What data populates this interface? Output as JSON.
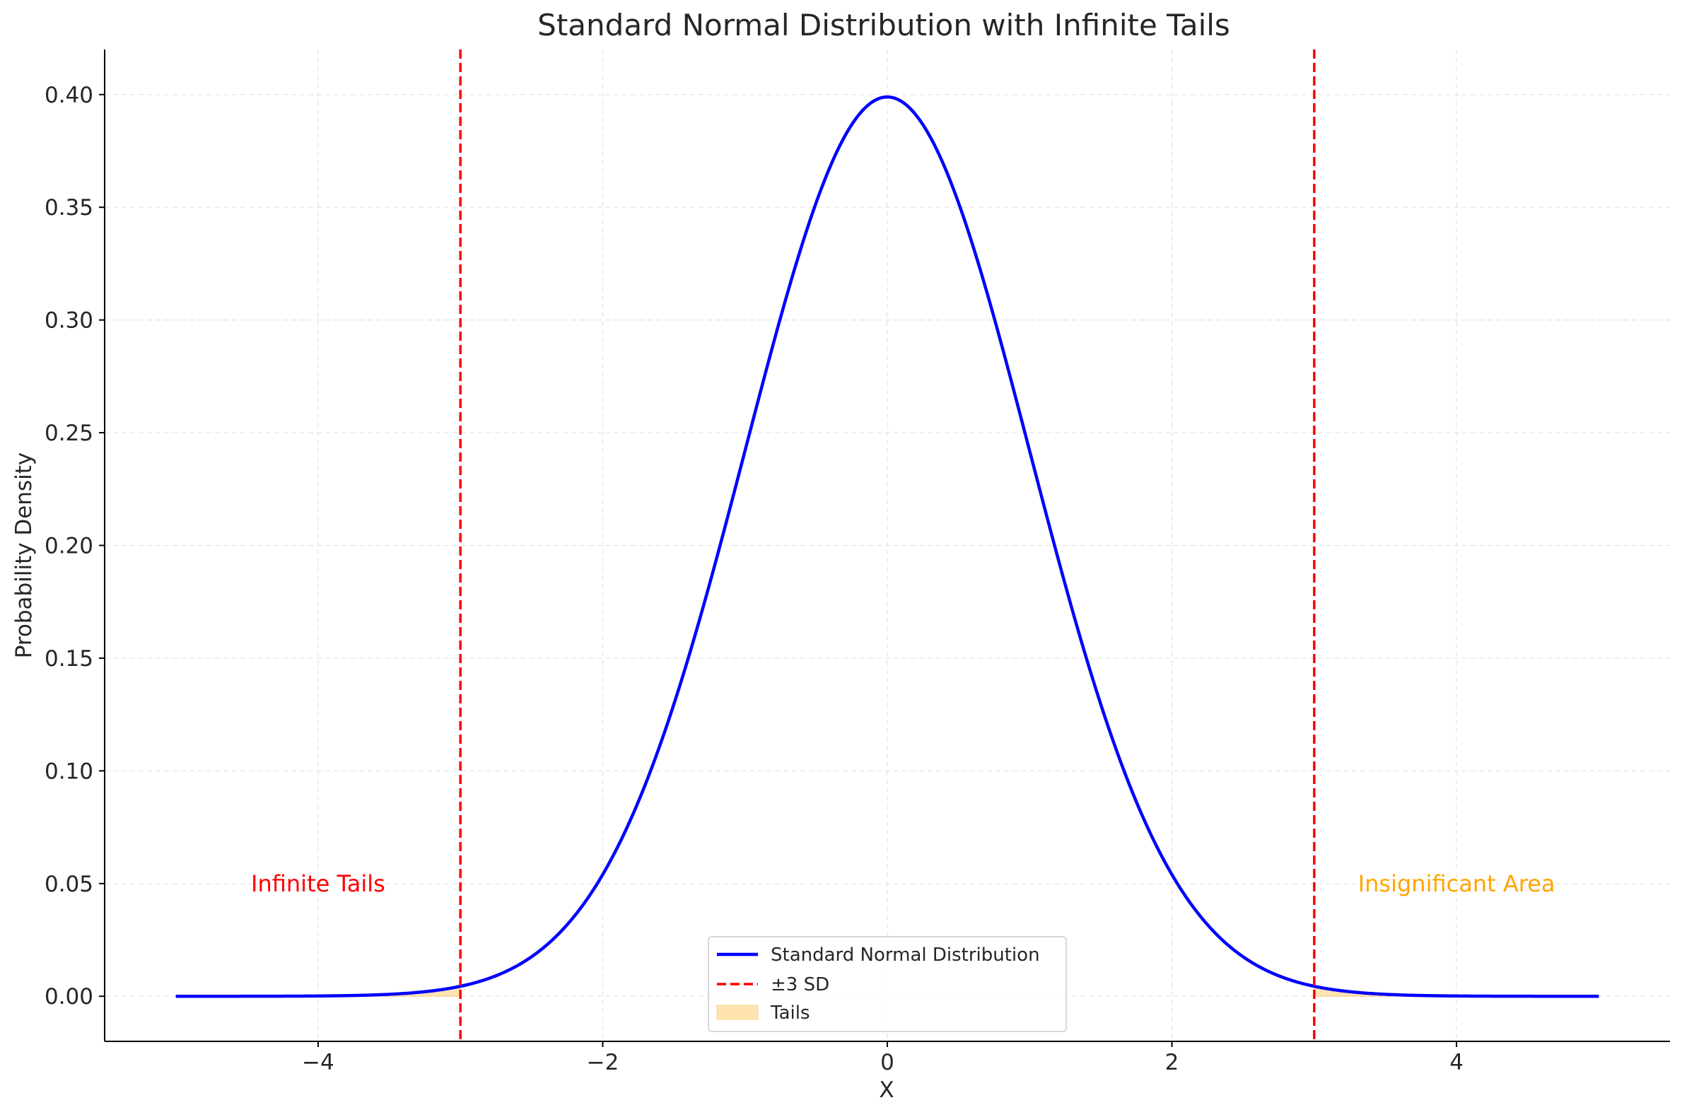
{
  "chart_data": {
    "type": "line",
    "title": "Standard Normal Distribution with Infinite Tails",
    "xlabel": "X",
    "ylabel": "Probability Density",
    "xlim": [
      -5.5,
      5.5
    ],
    "ylim": [
      -0.02,
      0.42
    ],
    "x_ticks": [
      -4,
      -2,
      0,
      2,
      4
    ],
    "x_tick_labels": [
      "−4",
      "−2",
      "0",
      "2",
      "4"
    ],
    "y_ticks": [
      0.0,
      0.05,
      0.1,
      0.15,
      0.2,
      0.25,
      0.3,
      0.35,
      0.4
    ],
    "y_tick_labels": [
      "0.00",
      "0.05",
      "0.10",
      "0.15",
      "0.20",
      "0.25",
      "0.30",
      "0.35",
      "0.40"
    ],
    "grid": true,
    "legend_position": "bottom-center",
    "series": [
      {
        "name": "Standard Normal Distribution",
        "kind": "line",
        "color": "#0000ff",
        "x_range": [
          -5,
          5
        ],
        "x": [
          -5,
          -4.5,
          -4,
          -3.5,
          -3,
          -2.5,
          -2,
          -1.5,
          -1,
          -0.5,
          0,
          0.5,
          1,
          1.5,
          2,
          2.5,
          3,
          3.5,
          4,
          4.5,
          5
        ],
        "y": [
          0.0,
          0.0,
          0.0001,
          0.0009,
          0.0044,
          0.0175,
          0.054,
          0.1295,
          0.242,
          0.3521,
          0.3989,
          0.3521,
          0.242,
          0.1295,
          0.054,
          0.0175,
          0.0044,
          0.0009,
          0.0001,
          0.0,
          0.0
        ]
      },
      {
        "name": "±3 SD",
        "kind": "vline",
        "color": "#ff0000",
        "style": "dashed",
        "x_positions": [
          -3,
          3
        ]
      },
      {
        "name": "Tails",
        "kind": "fill",
        "color": "#ffa500",
        "alpha": 0.3,
        "regions": [
          [
            -5,
            -3
          ],
          [
            3,
            5
          ]
        ]
      }
    ],
    "annotations": [
      {
        "text": "Infinite Tails",
        "x": -4,
        "y": 0.05,
        "color": "#ff0000"
      },
      {
        "text": "Insignificant Area",
        "x": 4,
        "y": 0.05,
        "color": "#ffa500"
      }
    ]
  }
}
